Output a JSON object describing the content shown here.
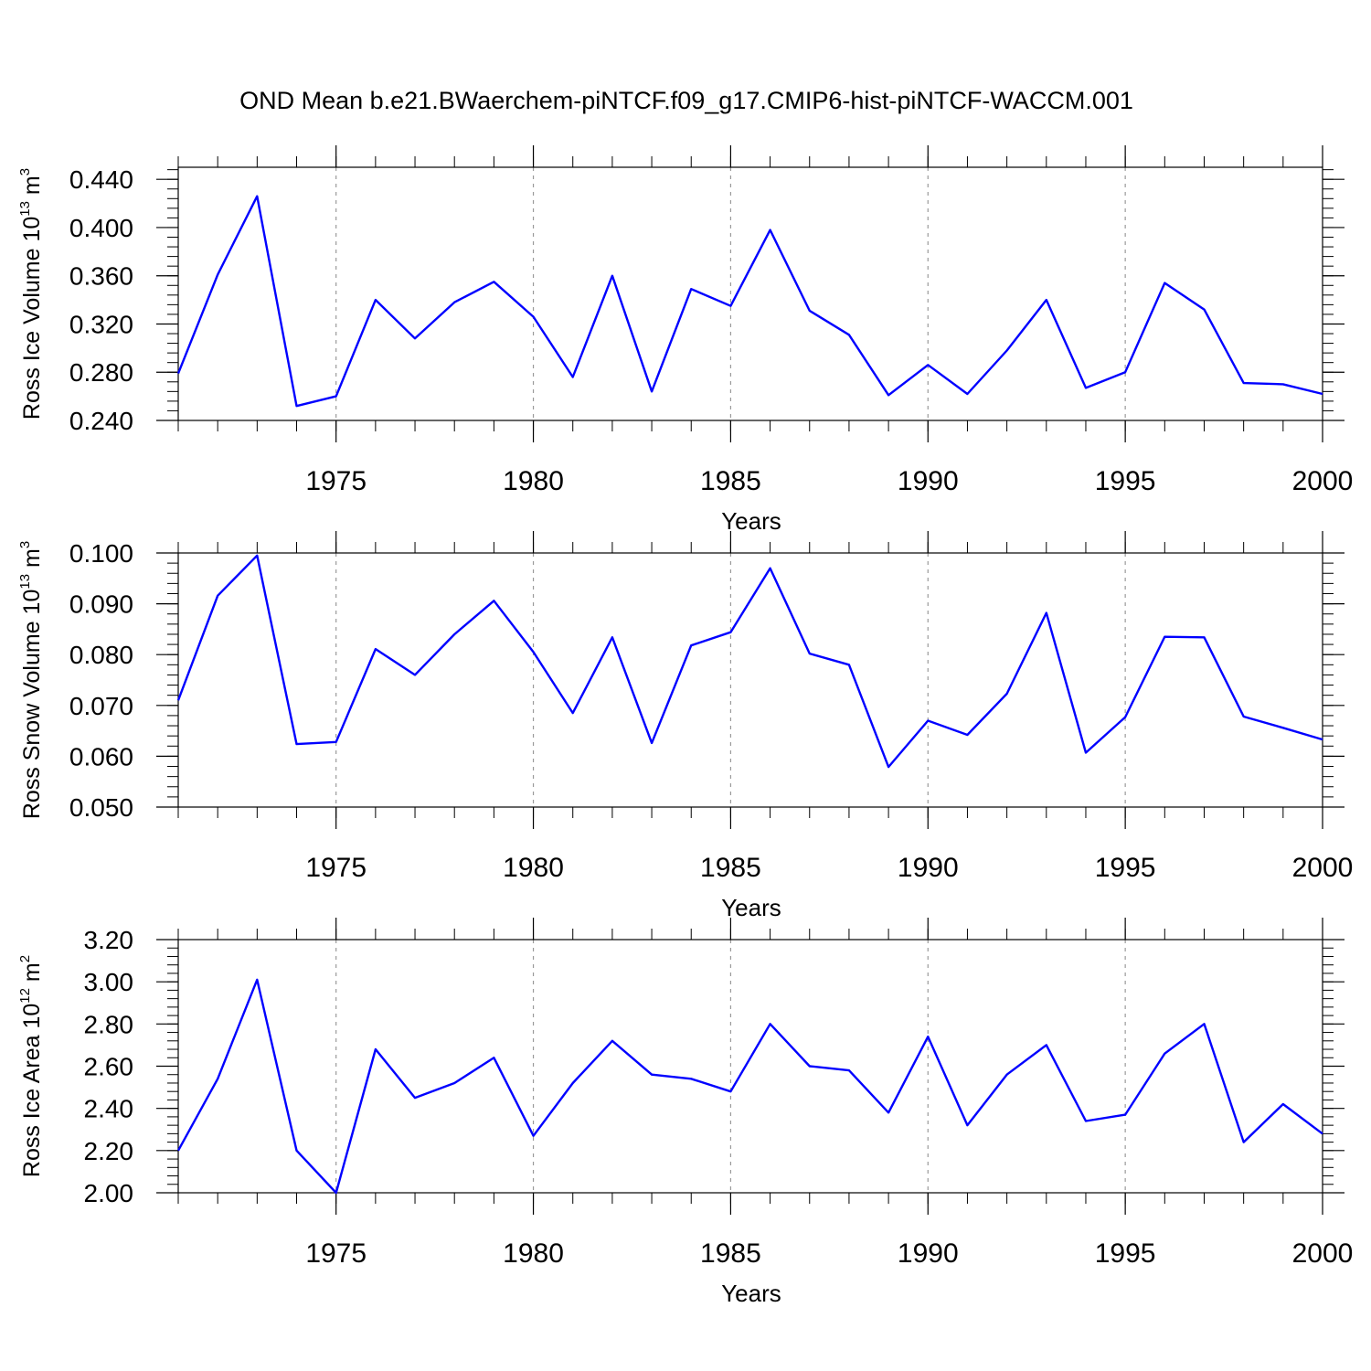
{
  "title": "OND Mean b.e21.BWaerchem-piNTCF.f09_g17.CMIP6-hist-piNTCF-WACCM.001",
  "colors": {
    "line": "#0000ff",
    "axis": "#000000",
    "grid": "#9a9a9a"
  },
  "chart_data": [
    {
      "type": "line",
      "ylabel": {
        "main": "Ross Ice Volume 10",
        "sup": "13",
        "unit": " m",
        "unit_sup": "3"
      },
      "xlabel": "Years",
      "xlim": [
        1971,
        2000
      ],
      "ylim": [
        0.24,
        0.45
      ],
      "yticks": [
        "0.240",
        "0.280",
        "0.320",
        "0.360",
        "0.400",
        "0.440"
      ],
      "xticks": [
        "1975",
        "1980",
        "1985",
        "1990",
        "1995",
        "2000"
      ],
      "grid": "dashed vertical at major x ticks",
      "series": [
        {
          "x": [
            1971,
            1972,
            1973,
            1974,
            1975,
            1976,
            1977,
            1978,
            1979,
            1980,
            1981,
            1982,
            1983,
            1984,
            1985,
            1986,
            1987,
            1988,
            1989,
            1990,
            1991,
            1992,
            1993,
            1994,
            1995,
            1996,
            1997,
            1998,
            1999,
            2000
          ],
          "values": [
            0.279,
            0.361,
            0.426,
            0.252,
            0.26,
            0.34,
            0.308,
            0.338,
            0.355,
            0.326,
            0.276,
            0.36,
            0.264,
            0.349,
            0.335,
            0.398,
            0.331,
            0.311,
            0.261,
            0.286,
            0.262,
            0.298,
            0.34,
            0.267,
            0.28,
            0.354,
            0.332,
            0.271,
            0.27,
            0.262
          ]
        }
      ]
    },
    {
      "type": "line",
      "ylabel": {
        "main": "Ross Snow Volume 10",
        "sup": "13",
        "unit": " m",
        "unit_sup": "3"
      },
      "xlabel": "Years",
      "xlim": [
        1971,
        2000
      ],
      "ylim": [
        0.05,
        0.1
      ],
      "yticks": [
        "0.050",
        "0.060",
        "0.070",
        "0.080",
        "0.090",
        "0.100"
      ],
      "xticks": [
        "1975",
        "1980",
        "1985",
        "1990",
        "1995",
        "2000"
      ],
      "grid": "dashed vertical at major x ticks",
      "series": [
        {
          "x": [
            1971,
            1972,
            1973,
            1974,
            1975,
            1976,
            1977,
            1978,
            1979,
            1980,
            1981,
            1982,
            1983,
            1984,
            1985,
            1986,
            1987,
            1988,
            1989,
            1990,
            1991,
            1992,
            1993,
            1994,
            1995,
            1996,
            1997,
            1998,
            1999,
            2000
          ],
          "values": [
            0.071,
            0.0916,
            0.0995,
            0.0624,
            0.0628,
            0.0811,
            0.076,
            0.084,
            0.0906,
            0.0805,
            0.0685,
            0.0834,
            0.0626,
            0.0818,
            0.0844,
            0.097,
            0.0802,
            0.078,
            0.0579,
            0.067,
            0.0642,
            0.0723,
            0.0882,
            0.0607,
            0.0677,
            0.0835,
            0.0834,
            0.0678,
            0.0656,
            0.0633
          ]
        }
      ]
    },
    {
      "type": "line",
      "ylabel": {
        "main": "Ross Ice Area 10",
        "sup": "12",
        "unit": " m",
        "unit_sup": "2"
      },
      "xlabel": "Years",
      "xlim": [
        1971,
        2000
      ],
      "ylim": [
        2.0,
        3.2
      ],
      "yticks": [
        "2.00",
        "2.20",
        "2.40",
        "2.60",
        "2.80",
        "3.00",
        "3.20"
      ],
      "xticks": [
        "1975",
        "1980",
        "1985",
        "1990",
        "1995",
        "2000"
      ],
      "grid": "dashed vertical at major x ticks",
      "series": [
        {
          "x": [
            1971,
            1972,
            1973,
            1974,
            1975,
            1976,
            1977,
            1978,
            1979,
            1980,
            1981,
            1982,
            1983,
            1984,
            1985,
            1986,
            1987,
            1988,
            1989,
            1990,
            1991,
            1992,
            1993,
            1994,
            1995,
            1996,
            1997,
            1998,
            1999,
            2000
          ],
          "values": [
            2.2,
            2.54,
            3.01,
            2.2,
            2.0,
            2.68,
            2.45,
            2.52,
            2.64,
            2.27,
            2.52,
            2.72,
            2.56,
            2.54,
            2.48,
            2.8,
            2.6,
            2.58,
            2.38,
            2.74,
            2.32,
            2.56,
            2.7,
            2.34,
            2.37,
            2.66,
            2.8,
            2.24,
            2.42,
            2.28
          ]
        }
      ]
    }
  ]
}
